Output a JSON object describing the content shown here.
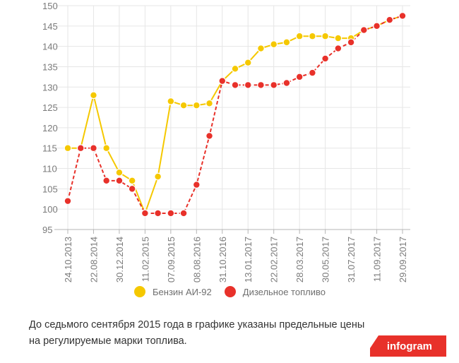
{
  "chart_data": {
    "type": "line",
    "x_tick_labels": [
      "24.10.2013",
      "22.08.2014",
      "30.12.2014",
      "11.02.2015",
      "07.09.2015",
      "08.08.2016",
      "31.10.2016",
      "13.01.2017",
      "22.02.2017",
      "28.03.2017",
      "30.05.2017",
      "31.07.2017",
      "11.09.2017",
      "29.09.2017"
    ],
    "y_ticks": [
      95,
      100,
      105,
      110,
      115,
      120,
      125,
      130,
      135,
      140,
      145,
      150
    ],
    "ylim": [
      95,
      150
    ],
    "grid": true,
    "legend_position": "bottom",
    "series": [
      {
        "name": "Бензин АИ-92",
        "color": "#f5c800",
        "values": [
          115,
          115,
          128,
          115,
          109,
          107,
          99,
          108,
          126.5,
          125.5,
          125.5,
          126,
          131.5,
          134.5,
          136,
          139.5,
          140.5,
          141,
          142.5,
          142.5,
          142.5,
          142,
          142,
          144,
          145,
          146.5,
          147.5
        ]
      },
      {
        "name": "Дизельное топливо",
        "color": "#e8312a",
        "values": [
          102,
          115,
          115,
          107,
          107,
          105,
          99,
          99,
          99,
          99,
          106,
          118,
          131.5,
          130.5,
          130.5,
          130.5,
          130.5,
          131,
          132.5,
          133.5,
          137,
          139.5,
          141,
          144,
          145,
          146.5,
          147.5
        ]
      }
    ]
  },
  "caption": {
    "line1": "До седьмого сентября 2015 года в графике указаны предельные цены",
    "line2": "на регулируемые марки топлива."
  },
  "brand": {
    "label": "infogram"
  }
}
